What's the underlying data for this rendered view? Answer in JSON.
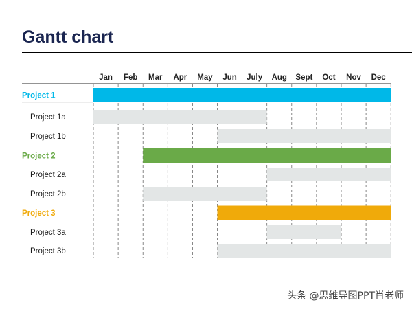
{
  "page": {
    "title": "Gantt chart",
    "watermark": "头条 @思维导图PPT肖老师"
  },
  "chart_data": {
    "type": "gantt",
    "title": "Gantt chart",
    "months": [
      "Jan",
      "Feb",
      "Mar",
      "Apr",
      "May",
      "Jun",
      "July",
      "Aug",
      "Sept",
      "Oct",
      "Nov",
      "Dec"
    ],
    "gridlines": "dashed vertical at month boundaries",
    "tasks": [
      {
        "name": "Project 1",
        "level": "project",
        "start": 1,
        "end": 12,
        "color": "#00b8e8"
      },
      {
        "name": "Project 1a",
        "level": "task",
        "start": 1,
        "end": 7,
        "color": "#e3e6e6"
      },
      {
        "name": "Project 1b",
        "level": "task",
        "start": 6,
        "end": 12,
        "color": "#e3e6e6"
      },
      {
        "name": "Project 2",
        "level": "project",
        "start": 3,
        "end": 12,
        "color": "#6aaa48"
      },
      {
        "name": "Project 2a",
        "level": "task",
        "start": 8,
        "end": 12,
        "color": "#e3e6e6"
      },
      {
        "name": "Project 2b",
        "level": "task",
        "start": 3,
        "end": 7,
        "color": "#e3e6e6"
      },
      {
        "name": "Project 3",
        "level": "project",
        "start": 6,
        "end": 12,
        "color": "#f0aa0a"
      },
      {
        "name": "Project 3a",
        "level": "task",
        "start": 8,
        "end": 10,
        "color": "#e3e6e6"
      },
      {
        "name": "Project 3b",
        "level": "task",
        "start": 6,
        "end": 12,
        "color": "#e3e6e6"
      }
    ]
  }
}
